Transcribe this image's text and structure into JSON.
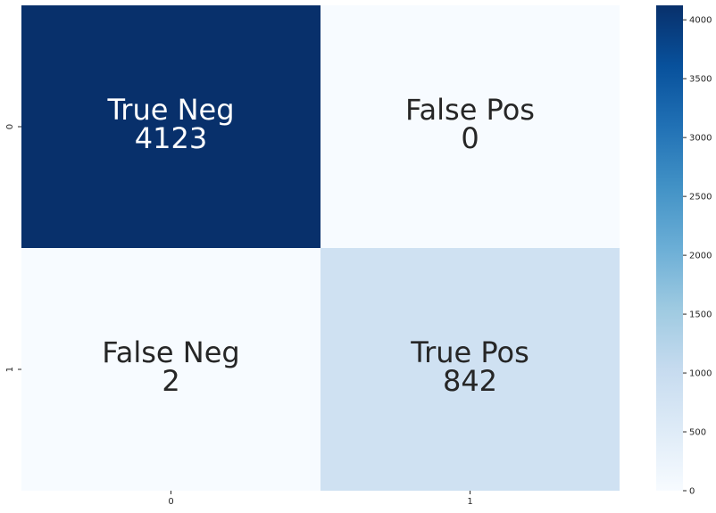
{
  "chart_data": {
    "type": "heatmap",
    "title": "",
    "xlabel": "",
    "ylabel": "",
    "x_categories": [
      "0",
      "1"
    ],
    "y_categories": [
      "0",
      "1"
    ],
    "values": [
      [
        4123,
        0
      ],
      [
        2,
        842
      ]
    ],
    "cell_labels": [
      [
        "True Neg",
        "False Pos"
      ],
      [
        "False Neg",
        "True Pos"
      ]
    ],
    "cell_value_labels": [
      [
        "4123",
        "0"
      ],
      [
        "2",
        "842"
      ]
    ],
    "colormap": "Blues",
    "vmin": 0,
    "vmax": 4123,
    "colorbar": {
      "ticks": [
        0,
        500,
        1000,
        1500,
        2000,
        2500,
        3000,
        3500,
        4000
      ],
      "tick_labels": [
        "0",
        "500",
        "1000",
        "1500",
        "2000",
        "2500",
        "3000",
        "3500",
        "4000"
      ]
    },
    "colors": {
      "high": "#08306b",
      "low": "#f7fbff",
      "text_dark": "#262626",
      "text_light": "#ffffff"
    }
  }
}
